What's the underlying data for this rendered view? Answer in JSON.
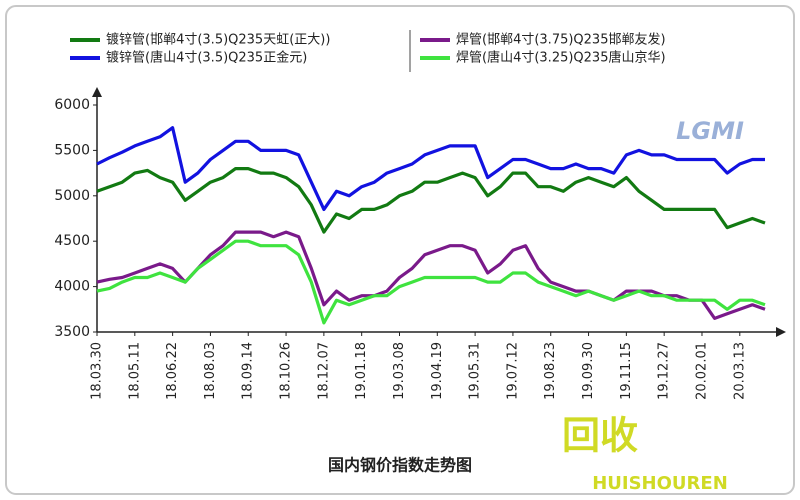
{
  "chart_data": {
    "type": "line",
    "title": "国内钢价指数走势图",
    "annotations": [
      "LGMI",
      "回收",
      "HUISHOUREN"
    ],
    "categories": [
      "18.03.30",
      null,
      null,
      "18.05.11",
      null,
      null,
      "18.06.22",
      null,
      null,
      "18.08.03",
      null,
      null,
      "18.09.14",
      null,
      null,
      "18.10.26",
      null,
      null,
      "18.12.07",
      null,
      null,
      "19.01.18",
      null,
      null,
      "19.03.08",
      null,
      null,
      "19.04.19",
      null,
      null,
      "19.05.31",
      null,
      null,
      "19.07.12",
      null,
      null,
      "19.08.23",
      null,
      null,
      "19.09.30",
      null,
      null,
      "19.11.15",
      null,
      null,
      "19.12.27",
      null,
      null,
      "20.02.01",
      null,
      null,
      "20.03.13",
      null,
      null
    ],
    "series": [
      {
        "name": "镀锌管(邯郸4寸(3.5)Q235天虹(正大))",
        "color": "#127a12",
        "values": [
          5050,
          5100,
          5150,
          5250,
          5280,
          5200,
          5150,
          4950,
          5050,
          5150,
          5200,
          5300,
          5300,
          5250,
          5250,
          5200,
          5100,
          4900,
          4600,
          4800,
          4750,
          4850,
          4850,
          4900,
          5000,
          5050,
          5150,
          5150,
          5200,
          5250,
          5200,
          5000,
          5100,
          5250,
          5250,
          5100,
          5100,
          5050,
          5150,
          5200,
          5150,
          5100,
          5200,
          5050,
          4950,
          4850,
          4850,
          4850,
          4850,
          4850,
          4650,
          4700,
          4750,
          4700
        ]
      },
      {
        "name": "镀锌管(唐山4寸(3.5)Q235正金元)",
        "color": "#1212e0",
        "values": [
          5350,
          5420,
          5480,
          5550,
          5600,
          5650,
          5750,
          5150,
          5250,
          5400,
          5500,
          5600,
          5600,
          5500,
          5500,
          5500,
          5450,
          5150,
          4850,
          5050,
          5000,
          5100,
          5150,
          5250,
          5300,
          5350,
          5450,
          5500,
          5550,
          5550,
          5550,
          5200,
          5300,
          5400,
          5400,
          5350,
          5300,
          5300,
          5350,
          5300,
          5300,
          5250,
          5450,
          5500,
          5450,
          5450,
          5400,
          5400,
          5400,
          5400,
          5250,
          5350,
          5400,
          5400
        ]
      },
      {
        "name": "焊管(邯郸4寸(3.75)Q235邯郸友发)",
        "color": "#7a1a8a",
        "values": [
          4050,
          4080,
          4100,
          4150,
          4200,
          4250,
          4200,
          4050,
          4200,
          4350,
          4450,
          4600,
          4600,
          4600,
          4550,
          4600,
          4550,
          4200,
          3800,
          3950,
          3850,
          3900,
          3900,
          3950,
          4100,
          4200,
          4350,
          4400,
          4450,
          4450,
          4400,
          4150,
          4250,
          4400,
          4450,
          4200,
          4050,
          4000,
          3950,
          3950,
          3900,
          3850,
          3950,
          3950,
          3950,
          3900,
          3900,
          3850,
          3850,
          3650,
          3700,
          3750,
          3800,
          3750
        ]
      },
      {
        "name": "焊管(唐山4寸(3.25)Q235唐山京华)",
        "color": "#3fe33f",
        "values": [
          3950,
          3980,
          4050,
          4100,
          4100,
          4150,
          4100,
          4050,
          4200,
          4300,
          4400,
          4500,
          4500,
          4450,
          4450,
          4450,
          4350,
          4050,
          3600,
          3850,
          3800,
          3850,
          3900,
          3900,
          4000,
          4050,
          4100,
          4100,
          4100,
          4100,
          4100,
          4050,
          4050,
          4150,
          4150,
          4050,
          4000,
          3950,
          3900,
          3950,
          3900,
          3850,
          3900,
          3950,
          3900,
          3900,
          3850,
          3850,
          3850,
          3850,
          3750,
          3850,
          3850,
          3800
        ]
      }
    ],
    "ylim": [
      3500,
      6000
    ],
    "yticks": [
      3500,
      4000,
      4500,
      5000,
      5500,
      6000
    ],
    "grid": false
  }
}
